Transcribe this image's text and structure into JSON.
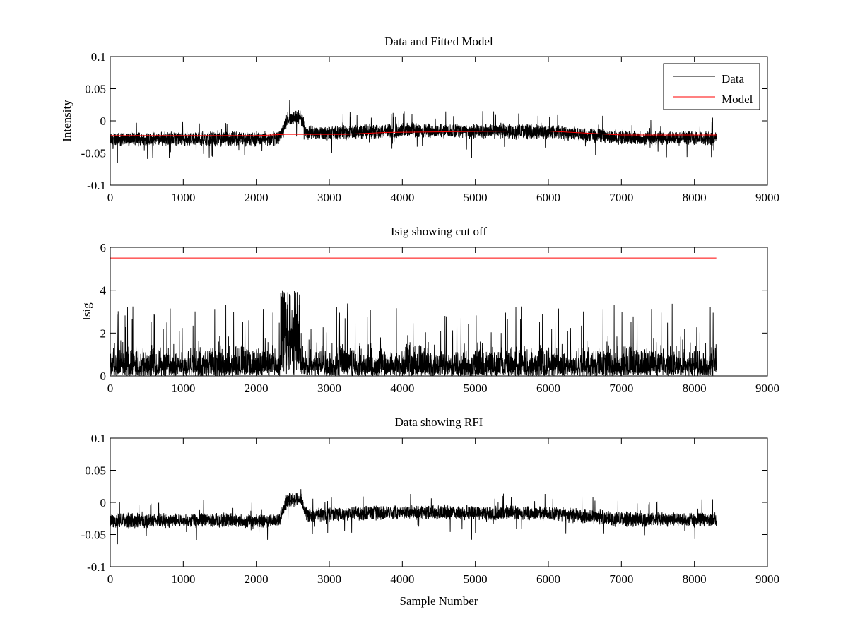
{
  "chart_data": [
    {
      "type": "line",
      "title": "Data and Fitted Model",
      "xlabel": "",
      "ylabel": "Intensity",
      "xlim": [
        0,
        9000
      ],
      "ylim": [
        -0.1,
        0.1
      ],
      "xticks": [
        0,
        1000,
        2000,
        3000,
        4000,
        5000,
        6000,
        7000,
        8000,
        9000
      ],
      "xtick_labels": [
        "0",
        "1000",
        "2000",
        "3000",
        "4000",
        "5000",
        "6000",
        "7000",
        "8000",
        "9000"
      ],
      "yticks": [
        -0.1,
        -0.05,
        0,
        0.05,
        0.1
      ],
      "ytick_labels": [
        "-0.1",
        "-0.05",
        "0",
        "0.05",
        "0.1"
      ],
      "legend": {
        "position": "top-right",
        "entries": [
          "Data",
          "Model"
        ]
      },
      "grid": false,
      "series": [
        {
          "name": "Data",
          "color": "#000000",
          "kind": "noisy",
          "x_range": [
            0,
            8300
          ],
          "baseline": {
            "x": [
              0,
              2300,
              2380,
              2420,
              2600,
              2700,
              3000,
              4000,
              5000,
              6000,
              7000,
              8300
            ],
            "y": [
              -0.028,
              -0.028,
              -0.012,
              0.003,
              0.006,
              -0.02,
              -0.018,
              -0.015,
              -0.016,
              -0.017,
              -0.026,
              -0.027
            ]
          },
          "noise_range": [
            0.025,
            0.04
          ],
          "spike_extremes": [
            [
              100,
              -0.065
            ],
            [
              4950,
              -0.058
            ],
            [
              8250,
              0.005
            ]
          ]
        },
        {
          "name": "Model",
          "color": "#ff0000",
          "kind": "line",
          "x": [
            0,
            1000,
            2000,
            2400,
            2600,
            3200,
            3800,
            4600,
            5500,
            6000,
            6500,
            7000,
            8300
          ],
          "y": [
            -0.023,
            -0.023,
            -0.023,
            -0.021,
            -0.021,
            -0.021,
            -0.018,
            -0.017,
            -0.016,
            -0.016,
            -0.019,
            -0.022,
            -0.022
          ]
        }
      ]
    },
    {
      "type": "line",
      "title": "Isig showing cut off",
      "xlabel": "",
      "ylabel": "Isig",
      "xlim": [
        0,
        9000
      ],
      "ylim": [
        0,
        6
      ],
      "xticks": [
        0,
        1000,
        2000,
        3000,
        4000,
        5000,
        6000,
        7000,
        8000,
        9000
      ],
      "xtick_labels": [
        "0",
        "1000",
        "2000",
        "3000",
        "4000",
        "5000",
        "6000",
        "7000",
        "8000",
        "9000"
      ],
      "yticks": [
        0,
        2,
        4,
        6
      ],
      "ytick_labels": [
        "0",
        "2",
        "4",
        "6"
      ],
      "grid": false,
      "series": [
        {
          "color": "#000000",
          "kind": "isig",
          "x_range": [
            0,
            8300
          ],
          "typical_max": 2.8,
          "burst": {
            "x": [
              2330,
              2600
            ],
            "max": 4.0
          }
        },
        {
          "color": "#ff0000",
          "kind": "line",
          "x": [
            0,
            8300
          ],
          "y": [
            5.5,
            5.5
          ]
        }
      ]
    },
    {
      "type": "line",
      "title": "Data showing RFI",
      "xlabel": "Sample Number",
      "ylabel": "",
      "xlim": [
        0,
        9000
      ],
      "ylim": [
        -0.1,
        0.1
      ],
      "xticks": [
        0,
        1000,
        2000,
        3000,
        4000,
        5000,
        6000,
        7000,
        8000,
        9000
      ],
      "xtick_labels": [
        "0",
        "1000",
        "2000",
        "3000",
        "4000",
        "5000",
        "6000",
        "7000",
        "8000",
        "9000"
      ],
      "yticks": [
        -0.1,
        -0.05,
        0,
        0.05,
        0.1
      ],
      "ytick_labels": [
        "-0.1",
        "-0.05",
        "0",
        "0.05",
        "0.1"
      ],
      "grid": false,
      "series": [
        {
          "color": "#000000",
          "kind": "noisy",
          "x_range": [
            0,
            8300
          ],
          "baseline": {
            "x": [
              0,
              2300,
              2380,
              2420,
              2600,
              2700,
              3000,
              4000,
              5000,
              6000,
              7000,
              8300
            ],
            "y": [
              -0.028,
              -0.028,
              -0.012,
              0.003,
              0.006,
              -0.02,
              -0.018,
              -0.015,
              -0.016,
              -0.017,
              -0.026,
              -0.027
            ]
          },
          "noise_range": [
            0.025,
            0.04
          ],
          "spike_extremes": [
            [
              100,
              -0.065
            ],
            [
              4950,
              -0.058
            ],
            [
              8250,
              0.005
            ]
          ]
        }
      ]
    }
  ]
}
